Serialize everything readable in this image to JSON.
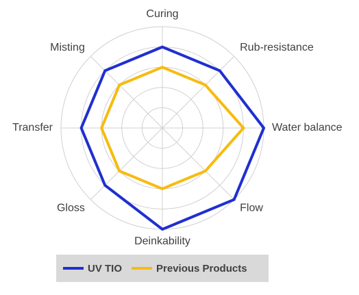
{
  "chart_data": {
    "type": "radar",
    "categories": [
      "Curing",
      "Rub-resistance",
      "Water balance",
      "Flow",
      "Deinkability",
      "Gloss",
      "Transfer",
      "Misting"
    ],
    "series": [
      {
        "name": "UV TIO",
        "color": "#1f2fd0",
        "values": [
          4,
          4,
          5,
          5,
          5,
          4,
          4,
          4
        ]
      },
      {
        "name": "Previous Products",
        "color": "#f7bb10",
        "values": [
          3,
          3,
          4,
          3,
          3,
          3,
          3,
          3
        ]
      }
    ],
    "ylim": [
      0,
      5
    ],
    "yticks": [
      1,
      2,
      3,
      4,
      5
    ],
    "grid": true,
    "legend": "bottom"
  }
}
